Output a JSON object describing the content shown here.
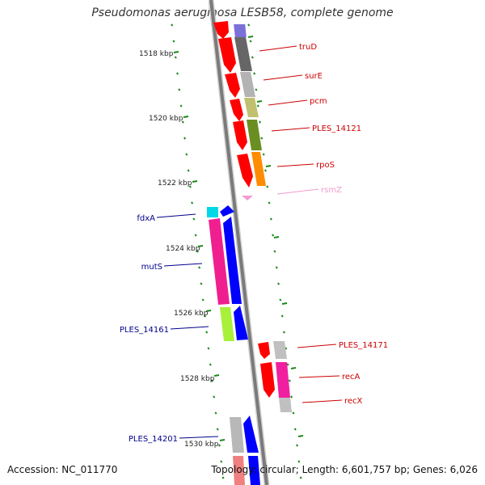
{
  "title": "Pseudomonas aeruginosa LESB58, complete genome",
  "accession": "Accession: NC_011770",
  "summary": "Topology: circular; Length: 6,601,757 bp; Genes: 6,026",
  "colors": {
    "forward": "#ff0000",
    "reverse": "#0000ff",
    "backbone": "#888888",
    "tick": "#1a8a1a"
  },
  "kbp_labels": [
    "1518 kbp",
    "1520 kbp",
    "1522 kbp",
    "1524 kbp",
    "1526 kbp",
    "1528 kbp",
    "1530 kbp"
  ],
  "right_genes": [
    {
      "name": "truD",
      "color": "#cc0000"
    },
    {
      "name": "surE",
      "color": "#cc0000"
    },
    {
      "name": "pcm",
      "color": "#cc0000"
    },
    {
      "name": "PLES_14121",
      "color": "#cc0000"
    },
    {
      "name": "rpoS",
      "color": "#cc0000"
    },
    {
      "name": "rsmZ",
      "color": "#f39ad0"
    },
    {
      "name": "PLES_14171",
      "color": "#cc0000"
    },
    {
      "name": "recA",
      "color": "#cc0000"
    },
    {
      "name": "recX",
      "color": "#cc0000"
    }
  ],
  "left_genes": [
    {
      "name": "fdxA",
      "color": "#00008b"
    },
    {
      "name": "mutS",
      "color": "#00008b"
    },
    {
      "name": "PLES_14161",
      "color": "#00008b"
    },
    {
      "name": "PLES_14201",
      "color": "#00008b"
    }
  ]
}
